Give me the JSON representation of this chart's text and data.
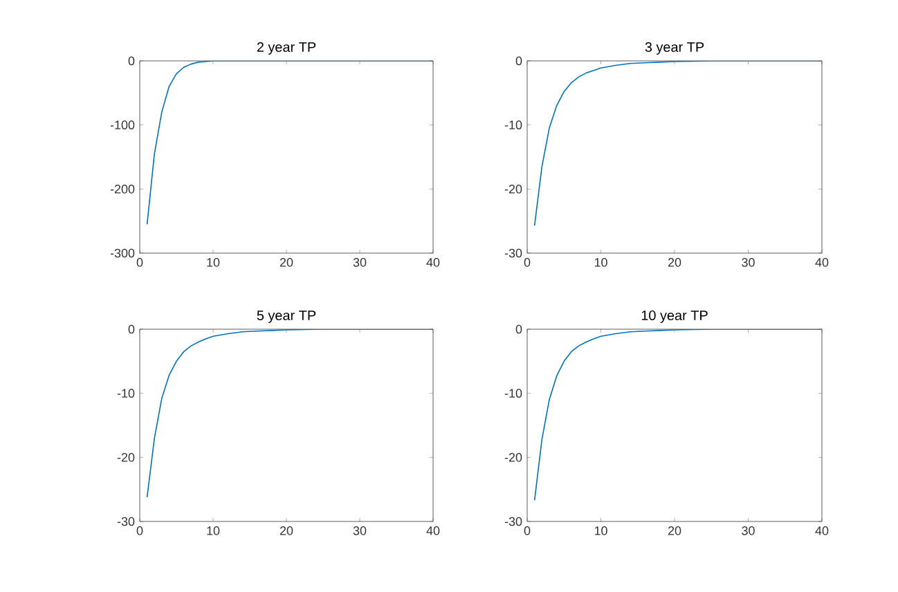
{
  "chart_data": [
    {
      "type": "line",
      "title": "2 year TP",
      "x": [
        1,
        2,
        3,
        4,
        5,
        6,
        7,
        8,
        9,
        10,
        12,
        14,
        16,
        18,
        20,
        25,
        30,
        35,
        40
      ],
      "values": [
        -255,
        -145,
        -80,
        -40,
        -20,
        -10,
        -5,
        -2,
        -1,
        0,
        0,
        0,
        0,
        0,
        0,
        0,
        0,
        0,
        0
      ],
      "color": "#0072bd",
      "xlim": [
        0,
        40
      ],
      "ylim": [
        -300,
        0
      ],
      "xticks": [
        0,
        10,
        20,
        30,
        40
      ],
      "yticks": [
        -300,
        -200,
        -100,
        0
      ]
    },
    {
      "type": "line",
      "title": "3 year TP",
      "x": [
        1,
        2,
        3,
        4,
        5,
        6,
        7,
        8,
        9,
        10,
        12,
        14,
        16,
        18,
        20,
        25,
        30,
        35,
        40
      ],
      "values": [
        -25.7,
        -16.5,
        -10.5,
        -7,
        -4.8,
        -3.4,
        -2.5,
        -1.9,
        -1.5,
        -1.1,
        -0.7,
        -0.4,
        -0.3,
        -0.2,
        -0.1,
        0,
        0,
        0,
        0
      ],
      "color": "#0072bd",
      "xlim": [
        0,
        40
      ],
      "ylim": [
        -30,
        0
      ],
      "xticks": [
        0,
        10,
        20,
        30,
        40
      ],
      "yticks": [
        -30,
        -20,
        -10,
        0
      ]
    },
    {
      "type": "line",
      "title": "5 year TP",
      "x": [
        1,
        2,
        3,
        4,
        5,
        6,
        7,
        8,
        9,
        10,
        12,
        14,
        16,
        18,
        20,
        25,
        30,
        35,
        40
      ],
      "values": [
        -26.2,
        -17,
        -10.8,
        -7.2,
        -5,
        -3.5,
        -2.6,
        -2,
        -1.5,
        -1.1,
        -0.7,
        -0.4,
        -0.3,
        -0.2,
        -0.1,
        0,
        0,
        0,
        0
      ],
      "color": "#0072bd",
      "xlim": [
        0,
        40
      ],
      "ylim": [
        -30,
        0
      ],
      "xticks": [
        0,
        10,
        20,
        30,
        40
      ],
      "yticks": [
        -30,
        -20,
        -10,
        0
      ]
    },
    {
      "type": "line",
      "title": "10 year TP",
      "x": [
        1,
        2,
        3,
        4,
        5,
        6,
        7,
        8,
        9,
        10,
        12,
        14,
        16,
        18,
        20,
        25,
        30,
        35,
        40
      ],
      "values": [
        -26.7,
        -17.2,
        -11,
        -7.3,
        -5,
        -3.5,
        -2.6,
        -2,
        -1.5,
        -1.1,
        -0.7,
        -0.4,
        -0.3,
        -0.2,
        -0.1,
        0,
        0,
        0,
        0
      ],
      "color": "#0072bd",
      "xlim": [
        0,
        40
      ],
      "ylim": [
        -30,
        0
      ],
      "xticks": [
        0,
        10,
        20,
        30,
        40
      ],
      "yticks": [
        -30,
        -20,
        -10,
        0
      ]
    }
  ]
}
